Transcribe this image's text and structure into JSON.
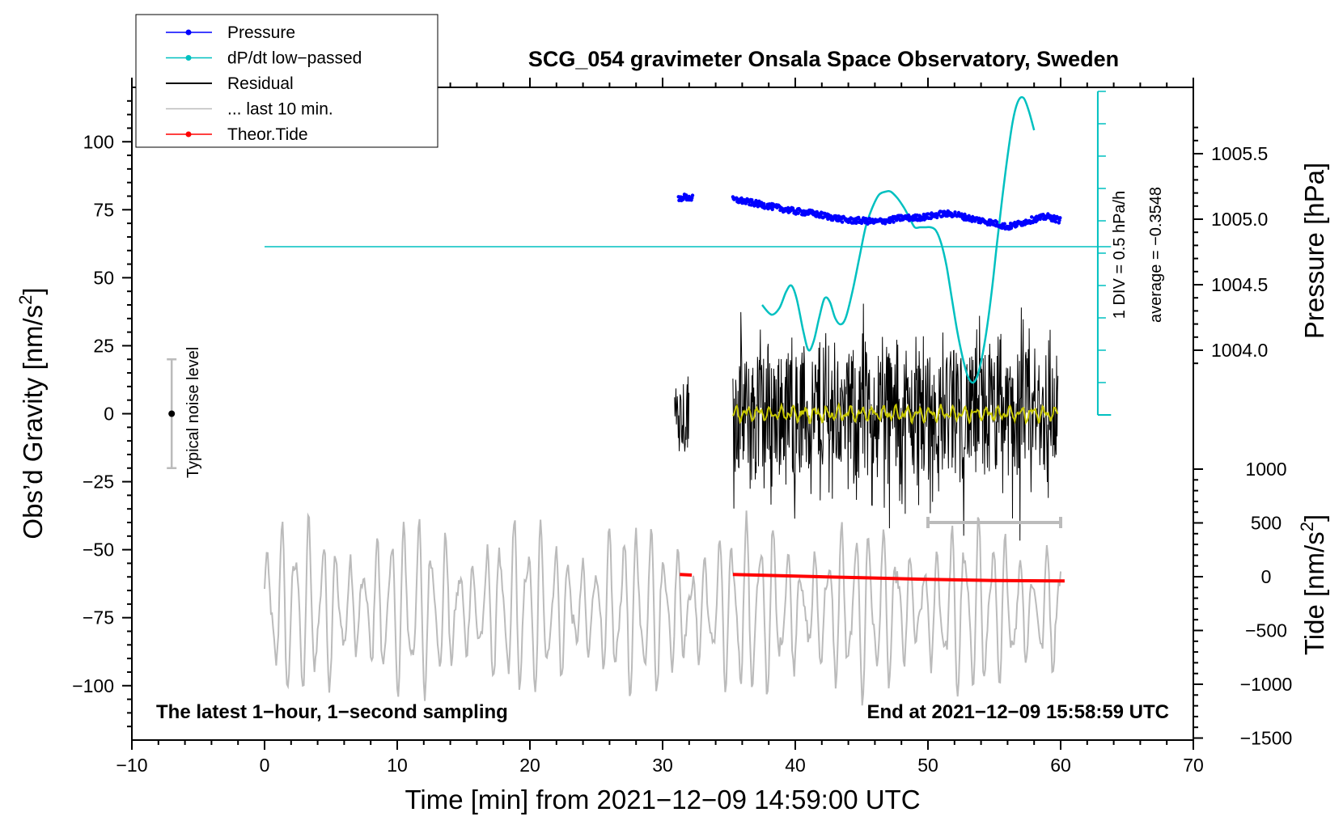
{
  "chart_data": {
    "type": "line",
    "title": "SCG_054 gravimeter Onsala Space Observatory, Sweden",
    "xlabel": "Time [min] from 2021−12−09 14:59:00 UTC",
    "ylabel_left": "Obs’d Gravity [nm/s",
    "ylabel_left_sup": "2",
    "ylabel_left_close": "]",
    "ylabel_right_pressure": "Pressure [hPa]",
    "ylabel_right_tide": "Tide [nm/s",
    "ylabel_right_tide_sup": "2",
    "ylabel_right_tide_close": "]",
    "xlim": [
      -10,
      70
    ],
    "ylim_left": [
      -120,
      120
    ],
    "x_ticks": [
      "−10",
      "0",
      "10",
      "20",
      "30",
      "40",
      "50",
      "60",
      "70"
    ],
    "x_tick_values": [
      -10,
      0,
      10,
      20,
      30,
      40,
      50,
      60,
      70
    ],
    "left_ticks": [
      "100",
      "75",
      "50",
      "25",
      "0",
      "−25",
      "−50",
      "−75",
      "−100"
    ],
    "left_tick_values": [
      100,
      75,
      50,
      25,
      0,
      -25,
      -50,
      -75,
      -100
    ],
    "pressure_ticks": [
      "1005.5",
      "1005.0",
      "1004.5",
      "1004.0"
    ],
    "pressure_tick_values": [
      1005.5,
      1005.0,
      1004.5,
      1004.0
    ],
    "tide_ticks": [
      "1000",
      "500",
      "0",
      "−500",
      "−1000",
      "−1500"
    ],
    "tide_tick_values": [
      1000,
      500,
      0,
      -500,
      -1000,
      -1500
    ],
    "legend": {
      "position": "top-left",
      "entries": [
        {
          "label": "Pressure",
          "color": "#0000ff",
          "marker": true
        },
        {
          "label": "dP/dt low−passed",
          "color": "#00c0c0",
          "marker": true
        },
        {
          "label": "Residual",
          "color": "#000000",
          "marker": false
        },
        {
          "label": "... last 10 min.",
          "color": "#bbbbbb",
          "marker": false
        },
        {
          "label": "Theor.Tide",
          "color": "#ff0000",
          "marker": true
        }
      ]
    },
    "annotations": {
      "bottom_left": "The latest 1−hour, 1−second sampling",
      "bottom_right": "End at 2021−12−09 15:58:59 UTC",
      "noise_label": "Typical noise level",
      "noise_range": [
        -20,
        20
      ],
      "noise_x": -7,
      "dpdt_scale": "1 DIV = 0.5 hPa/h",
      "dpdt_average": "average = −0.3548",
      "last10_bar_x": [
        50,
        60
      ],
      "last10_bar_y": -40
    },
    "series": [
      {
        "name": "Pressure",
        "axis": "pressure",
        "color": "#0000ff",
        "segments": [
          {
            "x": [
              31.2,
              31.6,
              32.0,
              32.3
            ],
            "y": [
              1005.15,
              1005.17,
              1005.16,
              1005.16
            ]
          },
          {
            "x": [
              35.3,
              36,
              37,
              38,
              39,
              40,
              41,
              42,
              43,
              44,
              45,
              46,
              47,
              48,
              49,
              50,
              51,
              52,
              53,
              54,
              55,
              56,
              57,
              58,
              59,
              60
            ],
            "y": [
              1005.15,
              1005.14,
              1005.12,
              1005.1,
              1005.08,
              1005.06,
              1005.05,
              1005.03,
              1005.01,
              1004.99,
              1004.99,
              1004.98,
              1004.99,
              1005.01,
              1005.01,
              1005.02,
              1005.04,
              1005.04,
              1005.01,
              1004.99,
              1004.97,
              1004.94,
              1004.97,
              1005.0,
              1005.02,
              1004.99
            ]
          }
        ]
      },
      {
        "name": "dP/dt low−passed",
        "axis": "dpdt",
        "color": "#00c0c0",
        "average_div": 5.2,
        "x": [
          37.5,
          38.2,
          38.8,
          39.3,
          39.7,
          40.1,
          40.6,
          41.0,
          41.4,
          41.8,
          42.2,
          42.6,
          43.0,
          43.4,
          43.8,
          44.3,
          44.8,
          45.3,
          45.8,
          46.3,
          46.8,
          47.2,
          47.7,
          48.2,
          48.6,
          49.0,
          49.4,
          49.8,
          50.2,
          50.6,
          51.0,
          51.4,
          51.8,
          52.2,
          52.6,
          53.0,
          53.4,
          53.8,
          54.3,
          54.8,
          55.2,
          55.6,
          56.0,
          56.4,
          56.8,
          57.2,
          57.6,
          58.0
        ],
        "y": [
          3.4,
          3.1,
          3.3,
          3.8,
          4.0,
          3.6,
          2.6,
          2.0,
          2.3,
          3.0,
          3.6,
          3.5,
          3.0,
          2.8,
          3.0,
          3.8,
          4.8,
          5.8,
          6.4,
          6.8,
          6.9,
          6.9,
          6.7,
          6.4,
          6.1,
          5.8,
          5.8,
          5.8,
          5.8,
          5.7,
          5.3,
          4.6,
          3.6,
          2.6,
          1.8,
          1.2,
          1.0,
          1.3,
          2.3,
          3.8,
          5.3,
          6.7,
          8.0,
          9.1,
          9.7,
          9.8,
          9.4,
          8.8
        ]
      },
      {
        "name": "Residual",
        "axis": "left",
        "color": "#000000",
        "segments": [
          {
            "x": [
              30.9,
              32.0
            ],
            "peak_amplitude": 28
          },
          {
            "x": [
              35.3,
              59.8
            ],
            "peak_amplitude": 42
          }
        ]
      },
      {
        "name": "Residual smoothed",
        "axis": "left",
        "color": "#c8c800",
        "x": [
          35.3,
          59.8
        ],
        "y": [
          0,
          0
        ]
      },
      {
        "name": "... last 10 min.",
        "axis": "left",
        "color": "#bbbbbb",
        "x": [
          0,
          60
        ],
        "center": -72,
        "peak_amplitude": 35
      },
      {
        "name": "Theor.Tide",
        "axis": "tide",
        "color": "#ff0000",
        "segments": [
          {
            "x": [
              31.3,
              32.2
            ],
            "y": [
              20,
              15
            ]
          },
          {
            "x": [
              35.3,
              40,
              45,
              50,
              55,
              60.3
            ],
            "y": [
              20,
              5,
              -10,
              -25,
              -35,
              -40
            ]
          }
        ]
      }
    ]
  }
}
